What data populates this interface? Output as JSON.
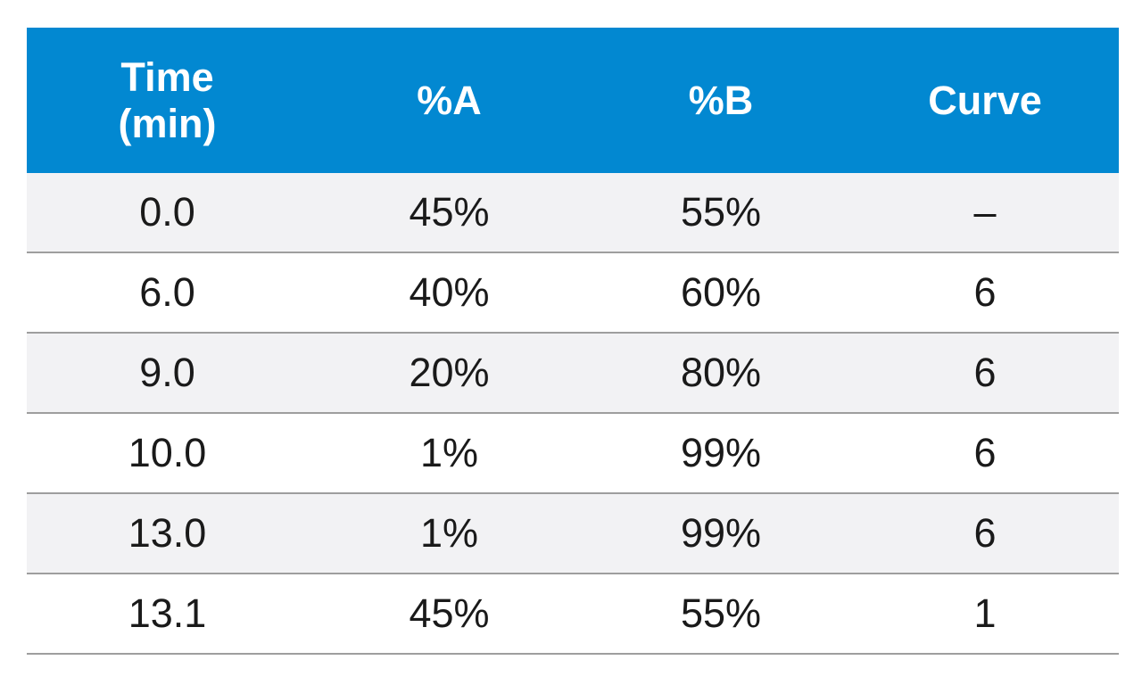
{
  "colors": {
    "header_bg": "#0288d1",
    "header_text": "#ffffff",
    "row_alt_bg": "#f2f2f4",
    "row_bg": "#ffffff",
    "divider": "#9e9e9e"
  },
  "table": {
    "headers": {
      "time_line1": "Time",
      "time_line2": "(min)",
      "a": "%A",
      "b": "%B",
      "curve": "Curve"
    },
    "rows": [
      {
        "time": "0.0",
        "a": "45%",
        "b": "55%",
        "curve": "–"
      },
      {
        "time": "6.0",
        "a": "40%",
        "b": "60%",
        "curve": "6"
      },
      {
        "time": "9.0",
        "a": "20%",
        "b": "80%",
        "curve": "6"
      },
      {
        "time": "10.0",
        "a": "1%",
        "b": "99%",
        "curve": "6"
      },
      {
        "time": "13.0",
        "a": "1%",
        "b": "99%",
        "curve": "6"
      },
      {
        "time": "13.1",
        "a": "45%",
        "b": "55%",
        "curve": "1"
      }
    ]
  }
}
